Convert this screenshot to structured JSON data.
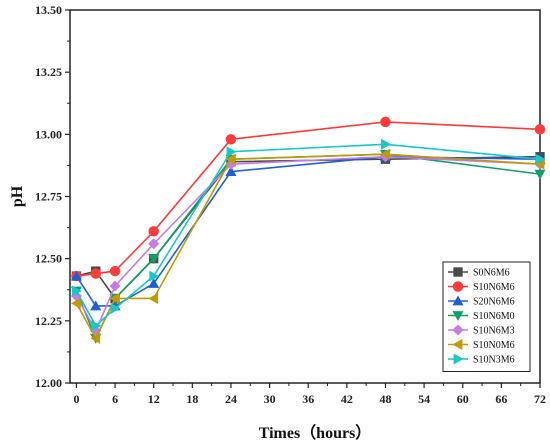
{
  "chart_data": {
    "type": "line",
    "xlabel": "Times（hours）",
    "ylabel": "pH",
    "x": [
      0,
      3,
      6,
      12,
      24,
      48,
      72
    ],
    "xlim": [
      -1,
      72
    ],
    "ylim": [
      12.0,
      13.5
    ],
    "xticks": [
      0,
      6,
      12,
      18,
      24,
      30,
      36,
      42,
      48,
      54,
      60,
      66,
      72
    ],
    "yticks": [
      12.0,
      12.25,
      12.5,
      12.75,
      13.0,
      13.25,
      13.5
    ],
    "ytick_labels": [
      "12.00",
      "12.25",
      "12.50",
      "12.75",
      "13.00",
      "13.25",
      "13.50"
    ],
    "grid": false,
    "legend_position": "bottom-right",
    "series": [
      {
        "name": "S0N6M6",
        "color": "#4a4a4a",
        "marker": "square",
        "values": [
          12.43,
          12.45,
          12.34,
          12.5,
          12.89,
          12.9,
          12.91
        ]
      },
      {
        "name": "S10N6M6",
        "color": "#ff3b3b",
        "marker": "circle",
        "values": [
          12.43,
          12.44,
          12.45,
          12.61,
          12.98,
          13.05,
          13.02
        ]
      },
      {
        "name": "S20N6M6",
        "color": "#1f5fd6",
        "marker": "triangle-up",
        "values": [
          12.43,
          12.31,
          12.31,
          12.4,
          12.85,
          12.91,
          12.9
        ]
      },
      {
        "name": "S10N6M0",
        "color": "#109e6a",
        "marker": "triangle-down",
        "values": [
          12.37,
          12.18,
          12.34,
          12.5,
          12.9,
          12.92,
          12.84
        ]
      },
      {
        "name": "S10N6M3",
        "color": "#c57ae6",
        "marker": "diamond",
        "values": [
          12.35,
          12.21,
          12.39,
          12.56,
          12.88,
          12.91,
          12.88
        ]
      },
      {
        "name": "S10N0M6",
        "color": "#c29a00",
        "marker": "triangle-left",
        "values": [
          12.32,
          12.18,
          12.34,
          12.34,
          12.9,
          12.92,
          12.88
        ]
      },
      {
        "name": "S10N3M6",
        "color": "#17c7c9",
        "marker": "triangle-right",
        "values": [
          12.37,
          12.23,
          12.3,
          12.43,
          12.93,
          12.96,
          12.9
        ]
      }
    ]
  }
}
